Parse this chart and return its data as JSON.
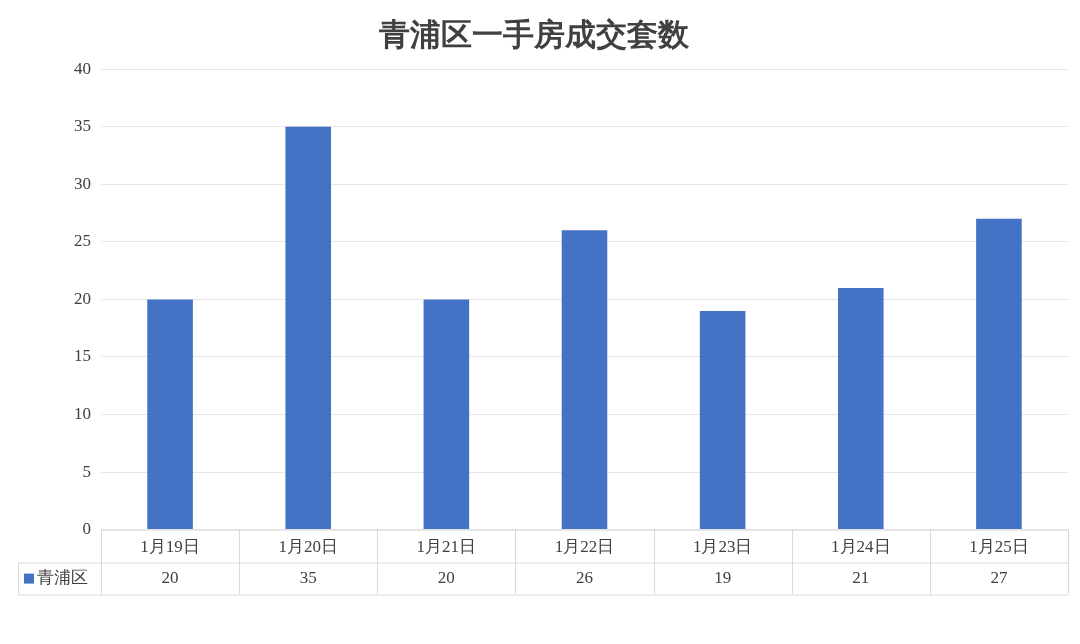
{
  "chart_data": {
    "type": "bar",
    "title": "青浦区一手房成交套数",
    "categories": [
      "1月19日",
      "1月20日",
      "1月21日",
      "1月22日",
      "1月23日",
      "1月24日",
      "1月25日"
    ],
    "series": [
      {
        "name": "青浦区",
        "color": "#4472c4",
        "values": [
          20,
          35,
          20,
          26,
          19,
          21,
          27
        ]
      }
    ],
    "ylim": [
      0,
      40
    ],
    "yticks": [
      0,
      5,
      10,
      15,
      20,
      25,
      30,
      35,
      40
    ],
    "grid": "y",
    "legend": "bottom left",
    "data_labels": true
  }
}
